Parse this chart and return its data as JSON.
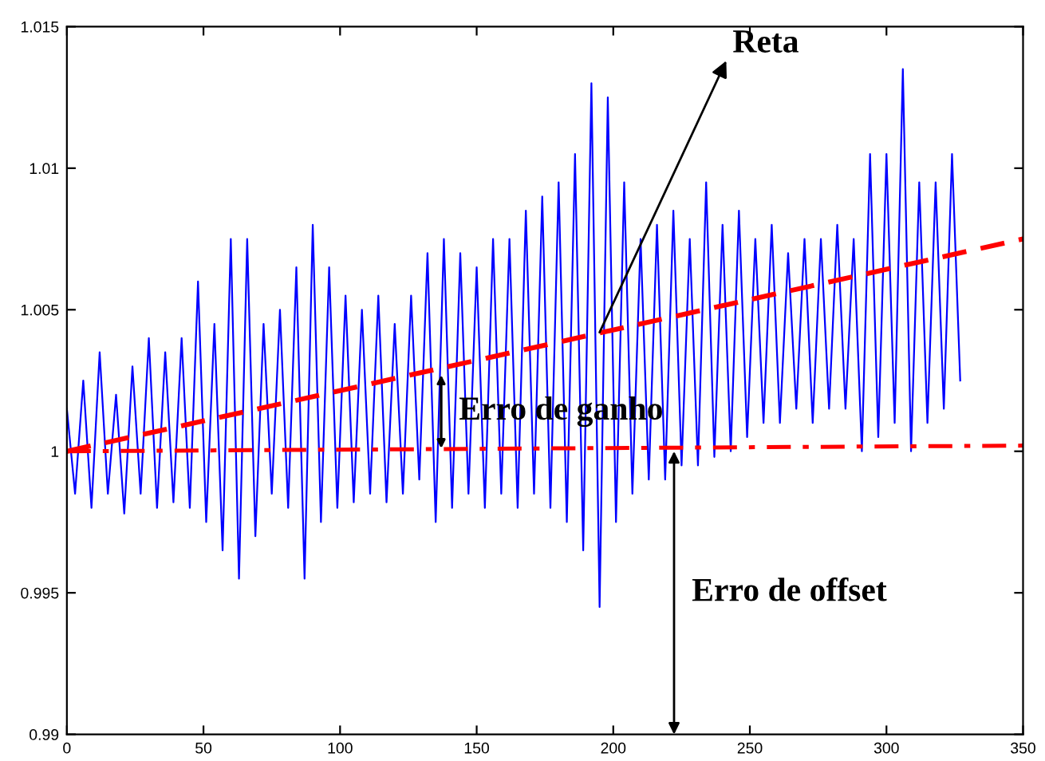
{
  "chart_data": {
    "type": "line",
    "xlim": [
      0,
      350
    ],
    "ylim": [
      0.99,
      1.015
    ],
    "xticks": [
      0,
      50,
      100,
      150,
      200,
      250,
      300,
      350
    ],
    "yticks": [
      0.99,
      0.995,
      1,
      1.005,
      1.01,
      1.015
    ],
    "grid": false,
    "legend": false,
    "series": [
      {
        "color": "#0000ff",
        "line_style": "solid",
        "x": [
          0,
          3,
          6,
          9,
          12,
          15,
          18,
          21,
          24,
          27,
          30,
          33,
          36,
          39,
          42,
          45,
          48,
          51,
          54,
          57,
          60,
          63,
          66,
          69,
          72,
          75,
          78,
          81,
          84,
          87,
          90,
          93,
          96,
          99,
          102,
          105,
          108,
          111,
          114,
          117,
          120,
          123,
          126,
          129,
          132,
          135,
          138,
          141,
          144,
          147,
          150,
          153,
          156,
          159,
          162,
          165,
          168,
          171,
          174,
          177,
          180,
          183,
          186,
          189,
          192,
          195,
          198,
          201,
          204,
          207,
          210,
          213,
          216,
          219,
          222,
          225,
          228,
          231,
          234,
          237,
          240,
          243,
          246,
          249,
          252,
          255,
          258,
          261,
          264,
          267,
          270,
          273,
          276,
          279,
          282,
          285,
          288,
          291,
          294,
          297,
          300,
          303,
          306,
          309,
          312,
          315,
          318,
          321,
          324,
          327
        ],
        "values": [
          1.0015,
          0.9985,
          1.0025,
          0.998,
          1.0035,
          0.9985,
          1.002,
          0.9978,
          1.003,
          0.9985,
          1.004,
          0.998,
          1.0035,
          0.9982,
          1.004,
          0.998,
          1.006,
          0.9975,
          1.0045,
          0.9965,
          1.0075,
          0.9955,
          1.0075,
          0.997,
          1.0045,
          0.9985,
          1.005,
          0.998,
          1.0065,
          0.9955,
          1.008,
          0.9975,
          1.0065,
          0.998,
          1.0055,
          0.9982,
          1.005,
          0.9985,
          1.0055,
          0.9982,
          1.0045,
          0.9985,
          1.0055,
          0.999,
          1.007,
          0.9975,
          1.0075,
          0.998,
          1.007,
          0.9985,
          1.0065,
          0.998,
          1.0075,
          0.9985,
          1.0075,
          0.998,
          1.0085,
          0.9985,
          1.009,
          0.998,
          1.0095,
          0.9975,
          1.0105,
          0.9965,
          1.013,
          0.9945,
          1.0125,
          0.9975,
          1.0095,
          0.9985,
          1.0075,
          0.999,
          1.008,
          0.999,
          1.0085,
          0.9995,
          1.0075,
          0.9995,
          1.0095,
          0.9998,
          1.008,
          1.0,
          1.0085,
          1.0005,
          1.0075,
          1.001,
          1.008,
          1.001,
          1.007,
          1.0015,
          1.0075,
          1.001,
          1.0075,
          1.0015,
          1.008,
          1.0015,
          1.0075,
          1.0,
          1.0105,
          1.0005,
          1.0105,
          1.001,
          1.0135,
          1.0,
          1.0095,
          1.001,
          1.0095,
          1.0015,
          1.0105,
          1.0025
        ]
      },
      {
        "color": "#ff0000",
        "line_style": "dashed",
        "x": [
          0,
          350
        ],
        "values": [
          1.0,
          1.0075
        ]
      },
      {
        "color": "#ff0000",
        "line_style": "dashdot",
        "x": [
          0,
          350
        ],
        "values": [
          1.0,
          1.0002
        ]
      }
    ],
    "annotations": [
      {
        "text": "Reta",
        "x": 195,
        "y": 1.0042
      },
      {
        "text": "Erro de ganho",
        "x": 137,
        "y": 1.0014
      },
      "Erro de offset"
    ]
  }
}
